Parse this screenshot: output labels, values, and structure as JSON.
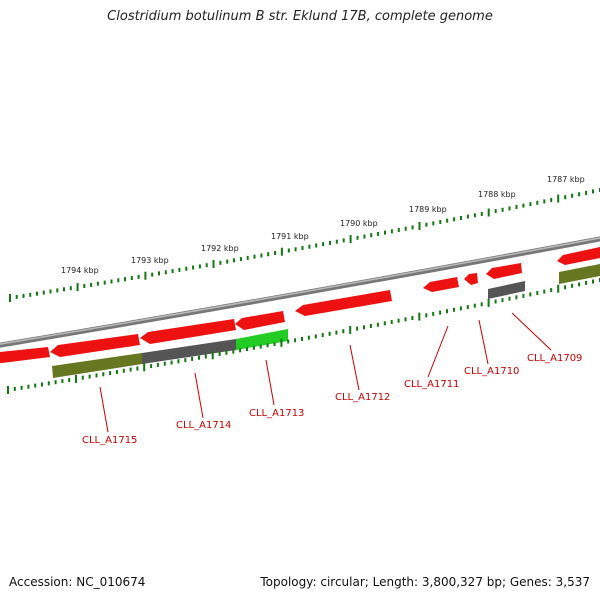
{
  "title": "Clostridium botulinum B str. Eklund 17B, complete genome",
  "footer": {
    "accession": "Accession: NC_010674",
    "summary": "Topology: circular; Length: 3,800,327 bp; Genes: 3,537"
  },
  "colors": {
    "gene_red": "#ee1111",
    "gene_olive": "#667722",
    "gene_gray": "#555555",
    "gene_green": "#22cc22",
    "label_red": "#cc0000",
    "tick_green": "#117711",
    "backbone": "#888888"
  },
  "kbp_labels": [
    "1794 kbp",
    "1793 kbp",
    "1792 kbp",
    "1791 kbp",
    "1790 kbp",
    "1789 kbp",
    "1788 kbp",
    "1787 kbp"
  ],
  "gene_labels": [
    "CLL_A1715",
    "CLL_A1714",
    "CLL_A1713",
    "CLL_A1712",
    "CLL_A1711",
    "CLL_A1710",
    "CLL_A1709"
  ]
}
